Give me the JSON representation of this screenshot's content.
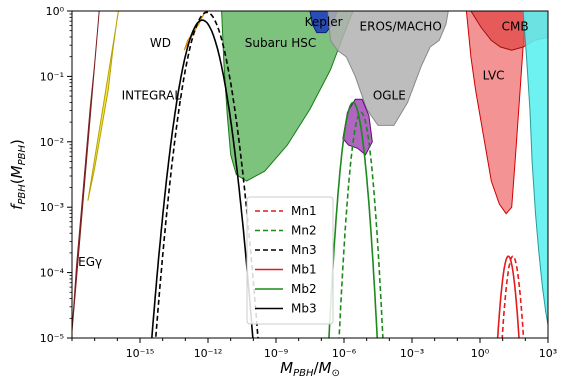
{
  "chart_data": {
    "type": "area",
    "xlabel": "M_PBH/M_⊙",
    "ylabel": "f_PBH(M_PBH)",
    "xscale": "log",
    "yscale": "log",
    "xlim_log10": [
      -18,
      3
    ],
    "ylim_log10": [
      -5,
      0
    ],
    "xticks": [
      {
        "exp": -15,
        "label": "10⁻¹⁵"
      },
      {
        "exp": -12,
        "label": "10⁻¹²"
      },
      {
        "exp": -9,
        "label": "10⁻⁹"
      },
      {
        "exp": -6,
        "label": "10⁻⁶"
      },
      {
        "exp": -3,
        "label": "10⁻³"
      },
      {
        "exp": 0,
        "label": "10⁰"
      },
      {
        "exp": 3,
        "label": "10³"
      }
    ],
    "yticks": [
      {
        "exp": -5,
        "label": "10⁻⁵"
      },
      {
        "exp": -4,
        "label": "10⁻⁴"
      },
      {
        "exp": -3,
        "label": "10⁻³"
      },
      {
        "exp": -2,
        "label": "10⁻²"
      },
      {
        "exp": -1,
        "label": "10⁻¹"
      },
      {
        "exp": 0,
        "label": "10⁰"
      }
    ],
    "constraints": [
      {
        "label": "EGγ",
        "color": "#bc6f73",
        "alpha": 0.85,
        "edge": "#7b1f1f",
        "boundary": [
          [
            -18,
            -4.9
          ],
          [
            -17.8,
            -3.9
          ],
          [
            -17.6,
            -3.1
          ],
          [
            -17.4,
            -2.3
          ],
          [
            -17.2,
            -1.5
          ],
          [
            -17.0,
            -0.8
          ],
          [
            -16.85,
            -0.2
          ],
          [
            -16.8,
            0
          ]
        ],
        "label_at": [
          -17.2,
          -3.9
        ]
      },
      {
        "label": "INTEGRAL",
        "color": "#f3e33a",
        "alpha": 0.9,
        "edge": "#b8a200",
        "boundary": [
          [
            -17.3,
            -2.9
          ],
          [
            -17.0,
            -2.4
          ],
          [
            -16.7,
            -1.8
          ],
          [
            -16.4,
            -1.2
          ],
          [
            -16.2,
            -0.6
          ],
          [
            -16.0,
            -0.1
          ],
          [
            -15.95,
            0
          ]
        ],
        "label_at": [
          -14.5,
          -1.35
        ]
      },
      {
        "label": "WD",
        "color": "#f8b749",
        "alpha": 0.9,
        "edge": "#e08a00",
        "boundary": [
          [
            -13.05,
            -0.6
          ],
          [
            -12.9,
            -0.45
          ],
          [
            -12.6,
            -0.3
          ],
          [
            -12.4,
            -0.2
          ],
          [
            -12.2,
            -0.05
          ],
          [
            -12.1,
            0
          ]
        ],
        "label_at": [
          -14.1,
          -0.55
        ]
      },
      {
        "label": "Subaru HSC",
        "color": "#5cb45c",
        "alpha": 0.8,
        "edge": "#1b7a1b",
        "boundary": [
          [
            -11.4,
            0
          ],
          [
            -11.3,
            -0.8
          ],
          [
            -11.15,
            -1.6
          ],
          [
            -11.0,
            -2.2
          ],
          [
            -10.75,
            -2.5
          ],
          [
            -10.3,
            -2.6
          ],
          [
            -9.5,
            -2.45
          ],
          [
            -8.5,
            -2.05
          ],
          [
            -7.5,
            -1.5
          ],
          [
            -6.6,
            -0.9
          ],
          [
            -6.0,
            -0.35
          ],
          [
            -5.6,
            0
          ]
        ],
        "label_at": [
          -8.8,
          -0.55
        ]
      },
      {
        "label": "Kepler",
        "color": "#2040b8",
        "alpha": 0.9,
        "edge": "#0f1f6e",
        "boundary": [
          [
            -7.5,
            0
          ],
          [
            -7.4,
            -0.2
          ],
          [
            -7.2,
            -0.33
          ],
          [
            -6.8,
            -0.33
          ],
          [
            -6.5,
            -0.2
          ],
          [
            -6.3,
            0
          ]
        ],
        "label_at": [
          -6.9,
          -0.23
        ]
      },
      {
        "label": "EROS/MACHO",
        "color": "#b2b2b2",
        "alpha": 0.85,
        "edge": "#8a8a8a",
        "boundary": [
          [
            -6.7,
            0
          ],
          [
            -6.6,
            -0.45
          ],
          [
            -6.3,
            -0.6
          ],
          [
            -5.9,
            -0.7
          ],
          [
            -5.5,
            -1.0
          ],
          [
            -5.0,
            -1.5
          ],
          [
            -4.5,
            -1.75
          ],
          [
            -3.8,
            -1.75
          ],
          [
            -3.2,
            -1.4
          ],
          [
            -2.6,
            -0.85
          ],
          [
            -2.2,
            -0.55
          ],
          [
            -1.8,
            -0.45
          ],
          [
            -1.5,
            -0.2
          ],
          [
            -1.4,
            0
          ]
        ],
        "label_at": [
          -3.5,
          -0.3
        ]
      },
      {
        "label": "OGLE",
        "color": "#a24ab5",
        "alpha": 0.85,
        "edge": "#5c0f74",
        "boundary": [
          [
            -6.05,
            -1.95
          ],
          [
            -5.85,
            -1.55
          ],
          [
            -5.5,
            -1.35
          ],
          [
            -5.2,
            -1.35
          ],
          [
            -4.9,
            -1.6
          ],
          [
            -4.75,
            -2.0
          ],
          [
            -5.05,
            -2.2
          ],
          [
            -5.4,
            -2.1
          ],
          [
            -5.8,
            -2.05
          ]
        ],
        "label_at": [
          -4.0,
          -1.35
        ]
      },
      {
        "label": "LVC",
        "color": "#f28080",
        "alpha": 0.85,
        "edge": "#d00000",
        "boundary": [
          [
            -0.6,
            0
          ],
          [
            -0.4,
            -0.7
          ],
          [
            -0.2,
            -1.2
          ],
          [
            0.15,
            -1.9
          ],
          [
            0.5,
            -2.6
          ],
          [
            0.85,
            -2.95
          ],
          [
            1.15,
            -3.1
          ],
          [
            1.4,
            -3.0
          ],
          [
            1.55,
            -2.3
          ],
          [
            1.75,
            -1.3
          ],
          [
            1.95,
            -0.3
          ],
          [
            2.05,
            0
          ]
        ],
        "label_at": [
          0.6,
          -1.05
        ]
      },
      {
        "label": "CMB",
        "color": "#e35050",
        "alpha": 0.85,
        "edge": "#a01010",
        "boundary": [
          [
            -0.4,
            0
          ],
          [
            0.05,
            -0.25
          ],
          [
            0.5,
            -0.45
          ],
          [
            0.9,
            -0.55
          ],
          [
            1.4,
            -0.6
          ],
          [
            1.9,
            -0.55
          ],
          [
            2.4,
            -0.45
          ],
          [
            3.0,
            -0.4
          ],
          [
            3.0,
            0
          ]
        ],
        "label_at": [
          1.55,
          -0.3
        ]
      },
      {
        "label": "",
        "color": "#5ef0f0",
        "alpha": 0.9,
        "edge": "#2a9a9a",
        "boundary": [
          [
            1.9,
            0
          ],
          [
            2.05,
            -0.7
          ],
          [
            2.2,
            -1.5
          ],
          [
            2.3,
            -2.3
          ],
          [
            2.45,
            -3.1
          ],
          [
            2.6,
            -3.7
          ],
          [
            2.75,
            -4.2
          ],
          [
            2.9,
            -4.6
          ],
          [
            3.0,
            -4.8
          ],
          [
            3.0,
            0
          ]
        ],
        "label_at": null
      }
    ],
    "series": [
      {
        "name": "Mn1",
        "color": "#e41a1c",
        "dash": "5,3",
        "center": 1.45,
        "sigma": 0.3,
        "peak": -3.75,
        "level_floor": -5.3
      },
      {
        "name": "Mn2",
        "color": "#1b8a1b",
        "dash": "5,3",
        "center": -5.25,
        "sigma": 0.37,
        "peak": -1.55,
        "level_floor": -5.3
      },
      {
        "name": "Mn3",
        "color": "#000000",
        "dash": "5,3",
        "center": -12.05,
        "sigma": 0.72,
        "peak": -0.02,
        "level_floor": -5.3
      },
      {
        "name": "Mb1",
        "color": "#e41a1c",
        "dash": "",
        "center": 1.25,
        "sigma": 0.3,
        "peak": -3.75,
        "level_floor": -5.3
      },
      {
        "name": "Mb2",
        "color": "#1b8a1b",
        "dash": "",
        "center": -5.6,
        "sigma": 0.4,
        "peak": -1.4,
        "level_floor": -5.3
      },
      {
        "name": "Mb3",
        "color": "#000000",
        "dash": "",
        "center": -12.25,
        "sigma": 0.72,
        "peak": -0.14,
        "level_floor": -5.3
      }
    ],
    "legend_placement": "lower-center",
    "grid": false
  }
}
